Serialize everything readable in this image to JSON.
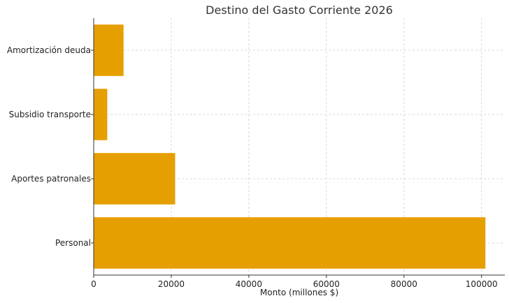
{
  "chart_data": {
    "type": "bar",
    "orientation": "horizontal",
    "title": "Destino del Gasto Corriente 2026",
    "xlabel": "Monto (millones $)",
    "ylabel": "",
    "categories": [
      "Personal",
      "Aportes patronales",
      "Subsidio transporte",
      "Amortización deuda"
    ],
    "values": [
      101000,
      21000,
      3500,
      7700
    ],
    "xlim": [
      0,
      106000
    ],
    "xticks": [
      0,
      20000,
      40000,
      60000,
      80000,
      100000
    ],
    "xtick_labels": [
      "0",
      "20000",
      "40000",
      "60000",
      "80000",
      "100000"
    ],
    "grid": true,
    "bar_color": "#E69F00"
  }
}
